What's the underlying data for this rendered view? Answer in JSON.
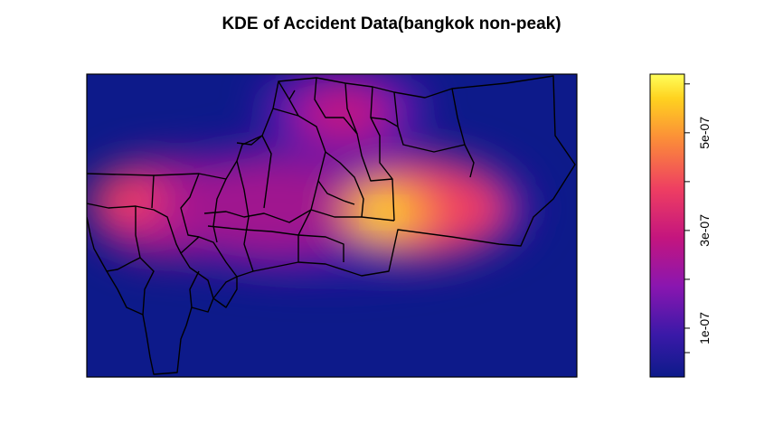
{
  "title": "KDE of Accident Data(bangkok non-peak)",
  "colorbar": {
    "palette": [
      "#0d1a8a",
      "#3a19a8",
      "#8a16b0",
      "#c4157e",
      "#ee3e62",
      "#fb8a3a",
      "#ffd21f",
      "#ffff5a"
    ],
    "range": [
      0,
      6.2e-07
    ],
    "tick_labels": [
      {
        "value": 1e-07,
        "label": "1e-07"
      },
      {
        "value": 3e-07,
        "label": "3e-07"
      },
      {
        "value": 5e-07,
        "label": "5e-07"
      }
    ],
    "minor_ticks": [
      5e-08,
      2e-07,
      4e-07,
      6e-07
    ]
  },
  "hotspots": [
    {
      "name": "east-center",
      "intensity": 1.0
    },
    {
      "name": "west",
      "intensity": 0.65
    },
    {
      "name": "central",
      "intensity": 0.55
    },
    {
      "name": "north",
      "intensity": 0.6
    }
  ]
}
